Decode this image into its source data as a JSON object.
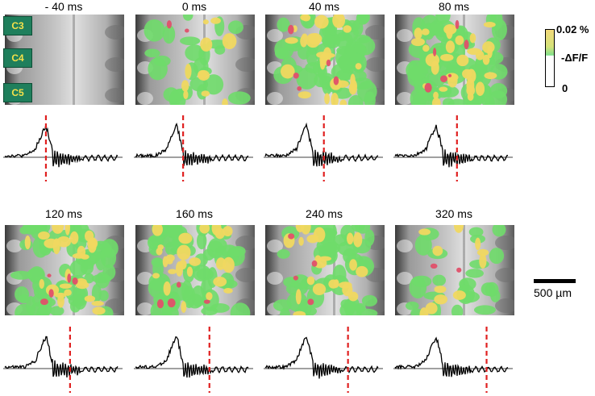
{
  "frames": [
    {
      "time": "- 40 ms",
      "activity": 0.0,
      "marker": 0.36
    },
    {
      "time": "0 ms",
      "activity": 0.35,
      "marker": 0.42
    },
    {
      "time": "40 ms",
      "activity": 0.85,
      "marker": 0.52
    },
    {
      "time": "80 ms",
      "activity": 1.0,
      "marker": 0.55
    },
    {
      "time": "120 ms",
      "activity": 0.85,
      "marker": 0.58
    },
    {
      "time": "160 ms",
      "activity": 0.8,
      "marker": 0.66
    },
    {
      "time": "240 ms",
      "activity": 0.7,
      "marker": 0.74
    },
    {
      "time": "320 ms",
      "activity": 0.35,
      "marker": 0.82
    }
  ],
  "segments": [
    "C3",
    "C4",
    "C5"
  ],
  "colorbar": {
    "max": "0.02 %",
    "label": "-ΔF/F",
    "min": "0"
  },
  "colors": {
    "low": "#6fdc6a",
    "mid": "#f0d860",
    "high": "#e0506a",
    "marker": "#e02020"
  },
  "scale": {
    "label": "500 µm"
  }
}
